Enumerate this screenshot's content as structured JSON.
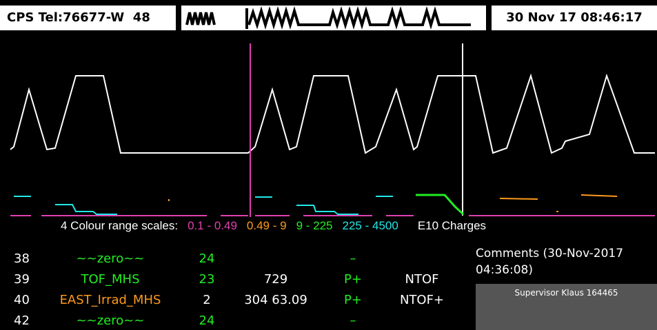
{
  "header": {
    "title": "CPS Tel:76677-W",
    "number": "48",
    "datetime": "30 Nov 17 08:46:17"
  },
  "legend": {
    "label": "4 Colour range scales:",
    "ranges": [
      {
        "text": "0.1 - 0.49",
        "color": "#e040b0"
      },
      {
        "text": "0.49 - 9",
        "color": "#ff9a1a"
      },
      {
        "text": "9 - 225",
        "color": "#22ee22"
      },
      {
        "text": "225 - 4500",
        "color": "#22e8e8"
      }
    ],
    "unit": "E10 Charges"
  },
  "table": {
    "rows": [
      {
        "number": "38",
        "user": "~~zero~~",
        "user_color": "#22ee22",
        "count": "24",
        "count_color": "#22ee22",
        "particle": "–"
      },
      {
        "number": "39",
        "user": "TOF_MHS",
        "user_color": "#22ee22",
        "count": "23",
        "count_color": "#22ee22",
        "value": "729",
        "particle": "P+",
        "destination": "NTOF"
      },
      {
        "number": "40",
        "user": "EAST_Irrad_MHS",
        "user_color": "#ff9a1a",
        "count": "2",
        "count_color": "#ffffff",
        "value": "304 63.09",
        "particle": "P+",
        "destination": "NTOF+"
      },
      {
        "number": "42",
        "user": "~~zero~~",
        "user_color": "#22ee22",
        "count": "24",
        "count_color": "#22ee22",
        "particle": "–"
      }
    ]
  },
  "comments": {
    "title": "Comments (30-Nov-2017 04:36:08)",
    "text": "Supervisor Klaus 164465"
  }
}
